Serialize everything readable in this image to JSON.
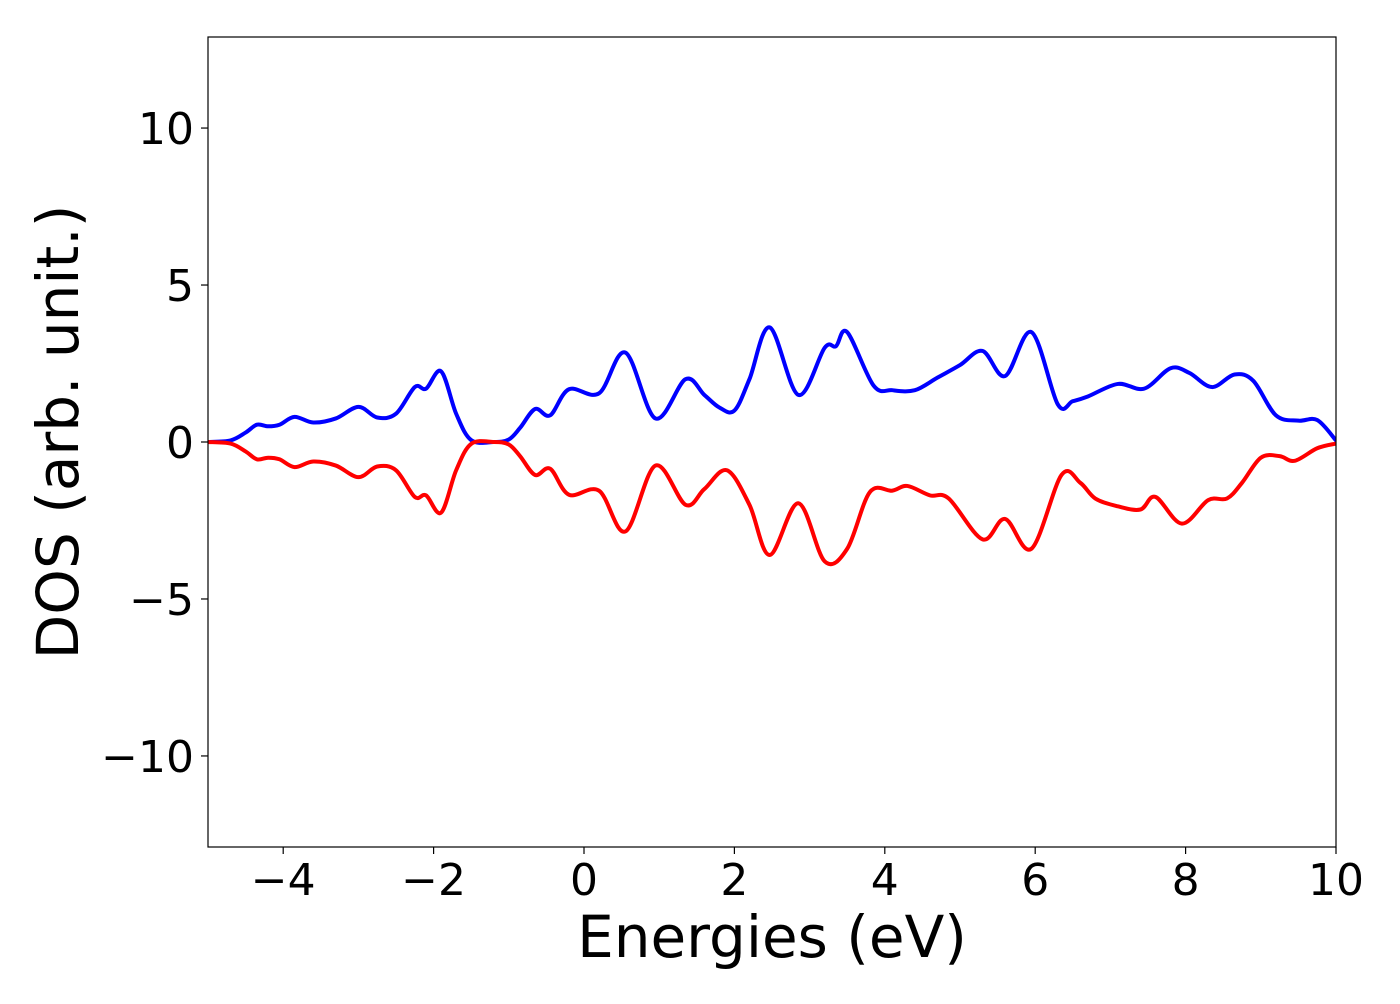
{
  "chart_data": {
    "type": "line",
    "title": "",
    "xlabel": "Energies (eV)",
    "ylabel": "DOS (arb. unit.)",
    "xlim": [
      -5,
      10
    ],
    "ylim": [
      -12.9,
      12.9
    ],
    "xticks": [
      -4,
      -2,
      0,
      2,
      4,
      6,
      8,
      10
    ],
    "yticks": [
      -10,
      -5,
      0,
      5,
      10
    ],
    "xtick_labels": [
      "−4",
      "−2",
      "0",
      "2",
      "4",
      "6",
      "8",
      "10"
    ],
    "ytick_labels": [
      "−10",
      "−5",
      "0",
      "5",
      "10"
    ],
    "grid": false,
    "legend": "none",
    "series": [
      {
        "color": "#0000ff",
        "points": [
          [
            -5.0,
            0.0
          ],
          [
            -4.7,
            0.05
          ],
          [
            -4.5,
            0.3
          ],
          [
            -4.35,
            0.55
          ],
          [
            -4.2,
            0.5
          ],
          [
            -4.05,
            0.55
          ],
          [
            -3.85,
            0.8
          ],
          [
            -3.6,
            0.62
          ],
          [
            -3.3,
            0.75
          ],
          [
            -3.0,
            1.12
          ],
          [
            -2.75,
            0.78
          ],
          [
            -2.5,
            0.9
          ],
          [
            -2.25,
            1.75
          ],
          [
            -2.1,
            1.7
          ],
          [
            -1.9,
            2.25
          ],
          [
            -1.7,
            0.9
          ],
          [
            -1.5,
            0.06
          ],
          [
            -1.2,
            0.0
          ],
          [
            -1.0,
            0.08
          ],
          [
            -0.85,
            0.45
          ],
          [
            -0.65,
            1.05
          ],
          [
            -0.45,
            0.85
          ],
          [
            -0.2,
            1.68
          ],
          [
            0.2,
            1.55
          ],
          [
            0.55,
            2.85
          ],
          [
            0.95,
            0.75
          ],
          [
            1.35,
            2.0
          ],
          [
            1.6,
            1.5
          ],
          [
            1.8,
            1.1
          ],
          [
            2.0,
            1.0
          ],
          [
            2.2,
            2.0
          ],
          [
            2.47,
            3.65
          ],
          [
            2.85,
            1.5
          ],
          [
            3.2,
            3.0
          ],
          [
            3.35,
            3.05
          ],
          [
            3.5,
            3.5
          ],
          [
            3.85,
            1.8
          ],
          [
            4.1,
            1.65
          ],
          [
            4.4,
            1.65
          ],
          [
            4.7,
            2.05
          ],
          [
            5.0,
            2.45
          ],
          [
            5.3,
            2.9
          ],
          [
            5.6,
            2.1
          ],
          [
            5.95,
            3.5
          ],
          [
            6.3,
            1.2
          ],
          [
            6.5,
            1.3
          ],
          [
            6.7,
            1.45
          ],
          [
            7.1,
            1.85
          ],
          [
            7.45,
            1.7
          ],
          [
            7.8,
            2.35
          ],
          [
            8.05,
            2.2
          ],
          [
            8.35,
            1.75
          ],
          [
            8.65,
            2.15
          ],
          [
            8.9,
            1.95
          ],
          [
            9.2,
            0.85
          ],
          [
            9.5,
            0.68
          ],
          [
            9.75,
            0.7
          ],
          [
            10.0,
            0.05
          ]
        ]
      },
      {
        "color": "#ff0000",
        "points": [
          [
            -5.0,
            0.0
          ],
          [
            -4.7,
            -0.05
          ],
          [
            -4.5,
            -0.3
          ],
          [
            -4.35,
            -0.55
          ],
          [
            -4.2,
            -0.5
          ],
          [
            -4.05,
            -0.55
          ],
          [
            -3.85,
            -0.8
          ],
          [
            -3.6,
            -0.62
          ],
          [
            -3.3,
            -0.75
          ],
          [
            -3.0,
            -1.12
          ],
          [
            -2.75,
            -0.78
          ],
          [
            -2.5,
            -0.9
          ],
          [
            -2.25,
            -1.75
          ],
          [
            -2.1,
            -1.7
          ],
          [
            -1.9,
            -2.25
          ],
          [
            -1.7,
            -0.9
          ],
          [
            -1.5,
            -0.06
          ],
          [
            -1.2,
            0.0
          ],
          [
            -1.0,
            -0.08
          ],
          [
            -0.85,
            -0.45
          ],
          [
            -0.65,
            -1.05
          ],
          [
            -0.45,
            -0.85
          ],
          [
            -0.2,
            -1.68
          ],
          [
            0.2,
            -1.55
          ],
          [
            0.55,
            -2.85
          ],
          [
            0.95,
            -0.75
          ],
          [
            1.35,
            -2.0
          ],
          [
            1.6,
            -1.5
          ],
          [
            1.9,
            -0.9
          ],
          [
            2.2,
            -2.0
          ],
          [
            2.47,
            -3.6
          ],
          [
            2.85,
            -1.95
          ],
          [
            3.2,
            -3.8
          ],
          [
            3.5,
            -3.4
          ],
          [
            3.8,
            -1.6
          ],
          [
            4.1,
            -1.55
          ],
          [
            4.3,
            -1.4
          ],
          [
            4.6,
            -1.7
          ],
          [
            4.85,
            -1.8
          ],
          [
            5.3,
            -3.1
          ],
          [
            5.6,
            -2.45
          ],
          [
            5.95,
            -3.4
          ],
          [
            6.35,
            -1.05
          ],
          [
            6.6,
            -1.3
          ],
          [
            6.8,
            -1.8
          ],
          [
            7.1,
            -2.05
          ],
          [
            7.4,
            -2.15
          ],
          [
            7.6,
            -1.75
          ],
          [
            7.95,
            -2.6
          ],
          [
            8.3,
            -1.85
          ],
          [
            8.55,
            -1.8
          ],
          [
            8.75,
            -1.3
          ],
          [
            9.0,
            -0.5
          ],
          [
            9.25,
            -0.45
          ],
          [
            9.45,
            -0.6
          ],
          [
            9.75,
            -0.2
          ],
          [
            10.0,
            -0.05
          ]
        ]
      }
    ]
  }
}
